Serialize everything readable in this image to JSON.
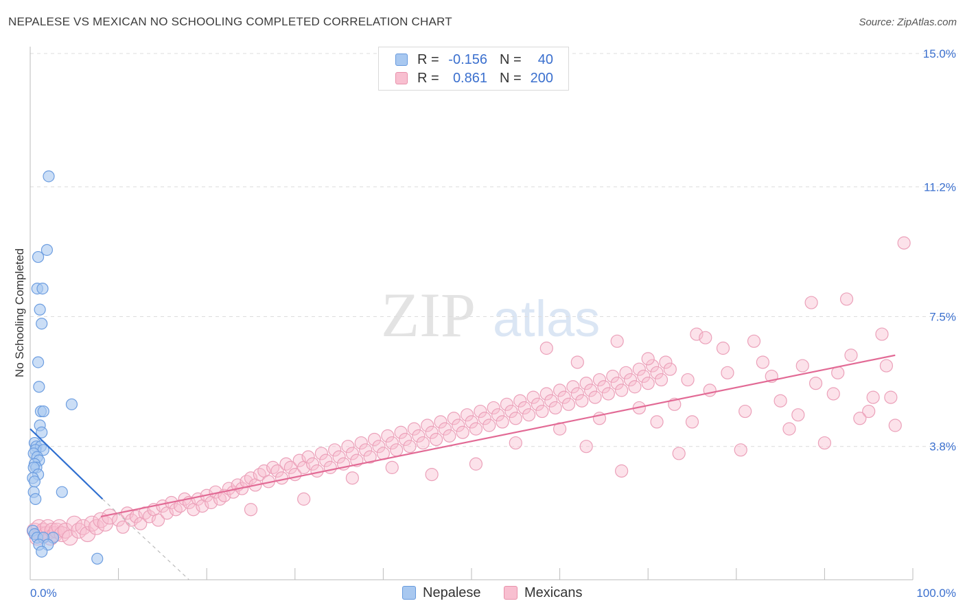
{
  "title": "NEPALESE VS MEXICAN NO SCHOOLING COMPLETED CORRELATION CHART",
  "source": "Source: ZipAtlas.com",
  "watermark": {
    "zip": "ZIP",
    "atlas": "atlas"
  },
  "legend": {
    "rows": [
      {
        "r_label": "R =",
        "r_value": "-0.156",
        "n_label": "N =",
        "n_value": "40",
        "color": "#a8c8f0",
        "border": "#6699dd"
      },
      {
        "r_label": "R =",
        "r_value": "0.861",
        "n_label": "N =",
        "n_value": "200",
        "color": "#f8bfd0",
        "border": "#e890aa"
      }
    ]
  },
  "bottom_legend": [
    {
      "label": "Nepalese",
      "color": "#a8c8f0",
      "border": "#6699dd"
    },
    {
      "label": "Mexicans",
      "color": "#f8bfd0",
      "border": "#e890aa"
    }
  ],
  "colors": {
    "blue_line": "#2f6fd0",
    "pink_line": "#e26a95",
    "tick_text": "#3a6fce",
    "grid": "#dcdcdc"
  },
  "chart_data": {
    "type": "scatter",
    "title": "NEPALESE VS MEXICAN NO SCHOOLING COMPLETED CORRELATION CHART",
    "xlabel": "",
    "ylabel": "No Schooling Completed",
    "xlim": [
      0,
      100
    ],
    "ylim": [
      0,
      15
    ],
    "x_tick_labels": [
      "0.0%",
      "100.0%"
    ],
    "y_ticks": [
      3.8,
      7.5,
      11.2,
      15.0
    ],
    "y_tick_labels": [
      "3.8%",
      "7.5%",
      "11.2%",
      "15.0%"
    ],
    "grid": "horizontal dashed",
    "legend_position": "top-center",
    "series": [
      {
        "name": "Nepalese",
        "r": -0.156,
        "n": 40,
        "trend": {
          "x": [
            0,
            8.2
          ],
          "y": [
            4.3,
            2.3
          ]
        },
        "trend_ext": {
          "x": [
            8.2,
            18
          ],
          "y": [
            2.3,
            0
          ]
        },
        "points": [
          [
            2.1,
            11.5
          ],
          [
            0.9,
            9.2
          ],
          [
            1.9,
            9.4
          ],
          [
            0.8,
            8.3
          ],
          [
            1.4,
            8.3
          ],
          [
            1.1,
            7.7
          ],
          [
            1.3,
            7.3
          ],
          [
            0.9,
            6.2
          ],
          [
            1.0,
            5.5
          ],
          [
            4.7,
            5.0
          ],
          [
            1.2,
            4.8
          ],
          [
            1.5,
            4.8
          ],
          [
            1.1,
            4.4
          ],
          [
            1.3,
            4.2
          ],
          [
            0.5,
            3.9
          ],
          [
            0.7,
            3.8
          ],
          [
            1.2,
            3.8
          ],
          [
            0.6,
            3.7
          ],
          [
            1.5,
            3.7
          ],
          [
            0.4,
            3.6
          ],
          [
            0.8,
            3.5
          ],
          [
            1.0,
            3.4
          ],
          [
            0.5,
            3.3
          ],
          [
            0.7,
            3.2
          ],
          [
            0.4,
            3.2
          ],
          [
            0.9,
            3.0
          ],
          [
            0.3,
            2.9
          ],
          [
            0.5,
            2.8
          ],
          [
            3.6,
            2.5
          ],
          [
            0.4,
            2.5
          ],
          [
            0.6,
            2.3
          ],
          [
            0.3,
            1.4
          ],
          [
            0.5,
            1.3
          ],
          [
            0.8,
            1.2
          ],
          [
            2.6,
            1.2
          ],
          [
            1.5,
            1.2
          ],
          [
            1.0,
            1.0
          ],
          [
            2.0,
            1.0
          ],
          [
            1.3,
            0.8
          ],
          [
            7.6,
            0.6
          ]
        ]
      },
      {
        "name": "Mexicans",
        "r": 0.861,
        "n": 200,
        "trend": {
          "x": [
            8,
            98
          ],
          "y": [
            1.8,
            6.4
          ]
        },
        "points": [
          [
            0.5,
            1.4
          ],
          [
            0.8,
            1.2
          ],
          [
            1.0,
            1.5
          ],
          [
            1.2,
            1.3
          ],
          [
            1.5,
            1.4
          ],
          [
            1.8,
            1.3
          ],
          [
            2.0,
            1.5
          ],
          [
            2.3,
            1.2
          ],
          [
            2.5,
            1.4
          ],
          [
            2.8,
            1.3
          ],
          [
            3.0,
            1.4
          ],
          [
            3.3,
            1.5
          ],
          [
            3.6,
            1.3
          ],
          [
            4.0,
            1.4
          ],
          [
            4.5,
            1.2
          ],
          [
            5.0,
            1.6
          ],
          [
            5.5,
            1.4
          ],
          [
            6.0,
            1.5
          ],
          [
            6.5,
            1.3
          ],
          [
            7.0,
            1.6
          ],
          [
            7.5,
            1.5
          ],
          [
            8.0,
            1.7
          ],
          [
            8.5,
            1.6
          ],
          [
            9.0,
            1.8
          ],
          [
            10.0,
            1.7
          ],
          [
            10.5,
            1.5
          ],
          [
            11.0,
            1.9
          ],
          [
            11.5,
            1.7
          ],
          [
            12.0,
            1.8
          ],
          [
            12.5,
            1.6
          ],
          [
            13.0,
            1.9
          ],
          [
            13.5,
            1.8
          ],
          [
            14.0,
            2.0
          ],
          [
            14.5,
            1.7
          ],
          [
            15.0,
            2.1
          ],
          [
            15.5,
            1.9
          ],
          [
            16.0,
            2.2
          ],
          [
            16.5,
            2.0
          ],
          [
            17.0,
            2.1
          ],
          [
            17.5,
            2.3
          ],
          [
            18.0,
            2.2
          ],
          [
            18.5,
            2.0
          ],
          [
            19.0,
            2.3
          ],
          [
            19.5,
            2.1
          ],
          [
            20.0,
            2.4
          ],
          [
            20.5,
            2.2
          ],
          [
            21.0,
            2.5
          ],
          [
            21.5,
            2.3
          ],
          [
            22.0,
            2.4
          ],
          [
            22.5,
            2.6
          ],
          [
            23.0,
            2.5
          ],
          [
            23.5,
            2.7
          ],
          [
            24.0,
            2.6
          ],
          [
            24.5,
            2.8
          ],
          [
            25.0,
            2.9
          ],
          [
            25.5,
            2.7
          ],
          [
            26.0,
            3.0
          ],
          [
            26.5,
            3.1
          ],
          [
            27.0,
            2.8
          ],
          [
            27.5,
            3.2
          ],
          [
            28.0,
            3.1
          ],
          [
            28.5,
            2.9
          ],
          [
            29.0,
            3.3
          ],
          [
            29.5,
            3.2
          ],
          [
            30.0,
            3.0
          ],
          [
            30.5,
            3.4
          ],
          [
            31.0,
            3.2
          ],
          [
            31.5,
            3.5
          ],
          [
            32.0,
            3.3
          ],
          [
            32.5,
            3.1
          ],
          [
            33.0,
            3.6
          ],
          [
            33.5,
            3.4
          ],
          [
            34.0,
            3.2
          ],
          [
            34.5,
            3.7
          ],
          [
            35.0,
            3.5
          ],
          [
            35.5,
            3.3
          ],
          [
            36.0,
            3.8
          ],
          [
            36.5,
            3.6
          ],
          [
            37.0,
            3.4
          ],
          [
            37.5,
            3.9
          ],
          [
            38.0,
            3.7
          ],
          [
            38.5,
            3.5
          ],
          [
            39.0,
            4.0
          ],
          [
            39.5,
            3.8
          ],
          [
            40.0,
            3.6
          ],
          [
            40.5,
            4.1
          ],
          [
            41.0,
            3.9
          ],
          [
            41.5,
            3.7
          ],
          [
            42.0,
            4.2
          ],
          [
            42.5,
            4.0
          ],
          [
            43.0,
            3.8
          ],
          [
            43.5,
            4.3
          ],
          [
            44.0,
            4.1
          ],
          [
            44.5,
            3.9
          ],
          [
            45.0,
            4.4
          ],
          [
            45.5,
            4.2
          ],
          [
            46.0,
            4.0
          ],
          [
            46.5,
            4.5
          ],
          [
            47.0,
            4.3
          ],
          [
            47.5,
            4.1
          ],
          [
            48.0,
            4.6
          ],
          [
            48.5,
            4.4
          ],
          [
            49.0,
            4.2
          ],
          [
            49.5,
            4.7
          ],
          [
            50.0,
            4.5
          ],
          [
            50.5,
            4.3
          ],
          [
            51.0,
            4.8
          ],
          [
            51.5,
            4.6
          ],
          [
            52.0,
            4.4
          ],
          [
            52.5,
            4.9
          ],
          [
            53.0,
            4.7
          ],
          [
            53.5,
            4.5
          ],
          [
            54.0,
            5.0
          ],
          [
            54.5,
            4.8
          ],
          [
            55.0,
            4.6
          ],
          [
            55.5,
            5.1
          ],
          [
            56.0,
            4.9
          ],
          [
            56.5,
            4.7
          ],
          [
            57.0,
            5.2
          ],
          [
            57.5,
            5.0
          ],
          [
            58.0,
            4.8
          ],
          [
            58.5,
            5.3
          ],
          [
            59.0,
            5.1
          ],
          [
            59.5,
            4.9
          ],
          [
            60.0,
            5.4
          ],
          [
            60.5,
            5.2
          ],
          [
            61.0,
            5.0
          ],
          [
            61.5,
            5.5
          ],
          [
            62.0,
            5.3
          ],
          [
            62.5,
            5.1
          ],
          [
            63.0,
            5.6
          ],
          [
            63.5,
            5.4
          ],
          [
            64.0,
            5.2
          ],
          [
            64.5,
            5.7
          ],
          [
            65.0,
            5.5
          ],
          [
            65.5,
            5.3
          ],
          [
            66.0,
            5.8
          ],
          [
            66.5,
            5.6
          ],
          [
            67.0,
            5.4
          ],
          [
            67.5,
            5.9
          ],
          [
            68.0,
            5.7
          ],
          [
            68.5,
            5.5
          ],
          [
            69.0,
            6.0
          ],
          [
            69.5,
            5.8
          ],
          [
            70.0,
            5.6
          ],
          [
            70.5,
            6.1
          ],
          [
            71.0,
            5.9
          ],
          [
            71.5,
            5.7
          ],
          [
            72.0,
            6.2
          ],
          [
            72.5,
            6.0
          ],
          [
            25.0,
            2.0
          ],
          [
            31.0,
            2.3
          ],
          [
            36.5,
            2.9
          ],
          [
            41.0,
            3.2
          ],
          [
            45.5,
            3.0
          ],
          [
            50.5,
            3.3
          ],
          [
            55.0,
            3.9
          ],
          [
            60.0,
            4.3
          ],
          [
            64.5,
            4.6
          ],
          [
            69.0,
            4.9
          ],
          [
            73.0,
            5.0
          ],
          [
            75.0,
            4.5
          ],
          [
            77.0,
            5.4
          ],
          [
            79.0,
            5.9
          ],
          [
            81.0,
            4.8
          ],
          [
            83.0,
            6.2
          ],
          [
            85.0,
            5.1
          ],
          [
            87.0,
            4.7
          ],
          [
            89.0,
            5.6
          ],
          [
            91.0,
            5.3
          ],
          [
            93.0,
            6.4
          ],
          [
            95.0,
            4.8
          ],
          [
            97.0,
            6.1
          ],
          [
            99.0,
            9.6
          ],
          [
            75.5,
            7.0
          ],
          [
            82.0,
            6.8
          ],
          [
            88.5,
            7.9
          ],
          [
            92.5,
            8.0
          ],
          [
            96.5,
            7.0
          ],
          [
            78.5,
            6.6
          ],
          [
            86.0,
            4.3
          ],
          [
            90.0,
            3.9
          ],
          [
            94.0,
            4.6
          ],
          [
            98.0,
            4.4
          ],
          [
            84.0,
            5.8
          ],
          [
            80.5,
            3.7
          ],
          [
            73.5,
            3.6
          ],
          [
            71.0,
            4.5
          ],
          [
            67.0,
            3.1
          ],
          [
            63.0,
            3.8
          ],
          [
            58.5,
            6.6
          ],
          [
            62.0,
            6.2
          ],
          [
            66.5,
            6.8
          ],
          [
            70.0,
            6.3
          ],
          [
            74.5,
            5.7
          ],
          [
            76.5,
            6.9
          ],
          [
            87.5,
            6.1
          ],
          [
            91.5,
            5.9
          ],
          [
            95.5,
            5.2
          ],
          [
            97.5,
            5.2
          ]
        ]
      }
    ]
  }
}
